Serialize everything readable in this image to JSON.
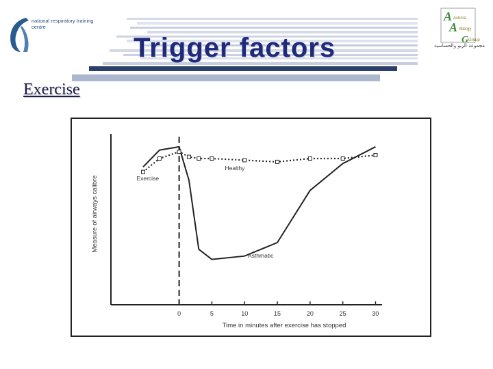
{
  "header": {
    "title": "Trigger factors",
    "subtitle": "Exercise",
    "left_logo_text": "national respiratory training centre",
    "right_logo_lines": [
      "Ashma",
      "Allergy",
      "Group"
    ],
    "right_logo_arabic": "مجموعة الربو والحساسية"
  },
  "colors": {
    "title": "#1f2a7a",
    "stripe_dark": "#2b3f6c",
    "stripe_light": "#aab7cf",
    "logo_blue": "#2a5b8f",
    "logo_green": "#3f8a3a"
  },
  "chart_data": {
    "type": "line",
    "title": "",
    "xlabel": "Time in minutes after exercise has stopped",
    "ylabel": "Measure of airways calibre",
    "xlim": [
      -10,
      31
    ],
    "ylim": [
      0,
      100
    ],
    "x_ticks": [
      0,
      5,
      10,
      15,
      20,
      25,
      30
    ],
    "grid": false,
    "series": [
      {
        "name": "Asthmatic",
        "style": "solid",
        "x": [
          -5.5,
          -3,
          0,
          1.5,
          3,
          5,
          10,
          15,
          20,
          25,
          30
        ],
        "y": [
          82,
          92,
          94,
          74,
          33,
          27,
          29,
          37,
          68,
          84,
          94
        ]
      },
      {
        "name": "Healthy",
        "style": "dotted",
        "x": [
          -5.5,
          -3,
          0,
          1.5,
          3,
          5,
          10,
          15,
          20,
          25,
          30
        ],
        "y": [
          79,
          87,
          91,
          88,
          87,
          87,
          86,
          85,
          87,
          87,
          89
        ]
      }
    ],
    "annotations": [
      {
        "text": "Exercise",
        "x": -6.5,
        "y": 74
      },
      {
        "text": "Healthy",
        "x": 7,
        "y": 80
      },
      {
        "text": "Asthmatic",
        "x": 10.5,
        "y": 28
      }
    ],
    "reference_line": {
      "x": 0,
      "style": "dashed"
    }
  }
}
